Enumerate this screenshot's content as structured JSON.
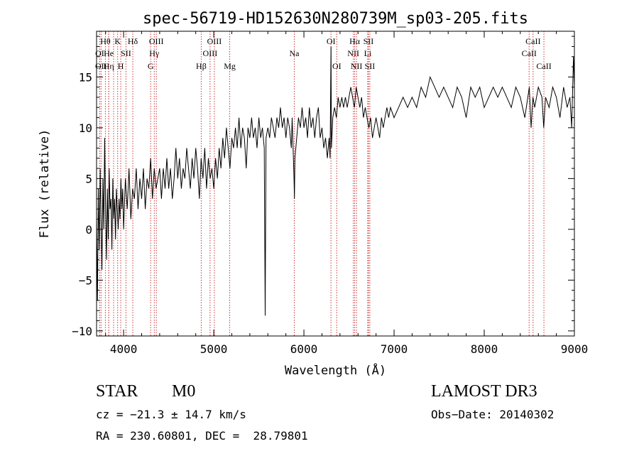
{
  "chart_data": {
    "type": "line",
    "title": "spec-56719-HD152630N280739M_sp03-205.fits",
    "xlabel": "Wavelength (Å)",
    "ylabel": "Flux (relative)",
    "xlim": [
      3700,
      9000
    ],
    "ylim": [
      -10.5,
      19.5
    ],
    "xticks": [
      4000,
      5000,
      6000,
      7000,
      8000,
      9000
    ],
    "yticks": [
      -10,
      -5,
      0,
      5,
      10,
      15
    ],
    "series": [
      {
        "name": "flux",
        "points": [
          [
            3700,
            1
          ],
          [
            3710,
            -7
          ],
          [
            3720,
            4
          ],
          [
            3730,
            -2
          ],
          [
            3740,
            6
          ],
          [
            3750,
            1
          ],
          [
            3760,
            -4
          ],
          [
            3770,
            5
          ],
          [
            3780,
            0
          ],
          [
            3790,
            9
          ],
          [
            3800,
            2
          ],
          [
            3810,
            -3
          ],
          [
            3820,
            4
          ],
          [
            3830,
            -1
          ],
          [
            3840,
            6
          ],
          [
            3850,
            2
          ],
          [
            3860,
            3
          ],
          [
            3870,
            -2
          ],
          [
            3880,
            5
          ],
          [
            3890,
            1
          ],
          [
            3900,
            3
          ],
          [
            3910,
            -1
          ],
          [
            3920,
            4
          ],
          [
            3930,
            2
          ],
          [
            3940,
            0
          ],
          [
            3950,
            3
          ],
          [
            3960,
            1
          ],
          [
            3970,
            5
          ],
          [
            3980,
            2
          ],
          [
            3990,
            4
          ],
          [
            4000,
            0
          ],
          [
            4020,
            5
          ],
          [
            4040,
            2
          ],
          [
            4060,
            6
          ],
          [
            4080,
            1
          ],
          [
            4100,
            4
          ],
          [
            4120,
            3
          ],
          [
            4140,
            6
          ],
          [
            4160,
            2
          ],
          [
            4180,
            5
          ],
          [
            4200,
            3
          ],
          [
            4220,
            6
          ],
          [
            4240,
            2
          ],
          [
            4260,
            5
          ],
          [
            4280,
            4
          ],
          [
            4300,
            7
          ],
          [
            4320,
            3
          ],
          [
            4340,
            6
          ],
          [
            4360,
            4
          ],
          [
            4380,
            5
          ],
          [
            4400,
            6
          ],
          [
            4420,
            3
          ],
          [
            4440,
            6
          ],
          [
            4460,
            4
          ],
          [
            4480,
            7
          ],
          [
            4500,
            4
          ],
          [
            4520,
            6
          ],
          [
            4540,
            3
          ],
          [
            4560,
            5
          ],
          [
            4580,
            8
          ],
          [
            4600,
            5
          ],
          [
            4620,
            7
          ],
          [
            4640,
            4
          ],
          [
            4660,
            6
          ],
          [
            4680,
            5
          ],
          [
            4700,
            8
          ],
          [
            4720,
            6
          ],
          [
            4740,
            4
          ],
          [
            4760,
            7
          ],
          [
            4780,
            5
          ],
          [
            4800,
            8
          ],
          [
            4820,
            6
          ],
          [
            4840,
            3
          ],
          [
            4860,
            7
          ],
          [
            4880,
            5
          ],
          [
            4900,
            8
          ],
          [
            4920,
            4
          ],
          [
            4940,
            7
          ],
          [
            4960,
            5
          ],
          [
            4980,
            6
          ],
          [
            5000,
            4
          ],
          [
            5020,
            7
          ],
          [
            5040,
            5
          ],
          [
            5060,
            8
          ],
          [
            5080,
            6
          ],
          [
            5100,
            9
          ],
          [
            5120,
            7
          ],
          [
            5140,
            10
          ],
          [
            5160,
            8
          ],
          [
            5180,
            6
          ],
          [
            5200,
            9
          ],
          [
            5220,
            8
          ],
          [
            5240,
            10
          ],
          [
            5260,
            8
          ],
          [
            5280,
            11
          ],
          [
            5300,
            8
          ],
          [
            5320,
            10
          ],
          [
            5340,
            9
          ],
          [
            5360,
            6
          ],
          [
            5380,
            10
          ],
          [
            5400,
            9
          ],
          [
            5420,
            11
          ],
          [
            5440,
            9
          ],
          [
            5460,
            10
          ],
          [
            5480,
            8
          ],
          [
            5500,
            11
          ],
          [
            5520,
            9
          ],
          [
            5540,
            10
          ],
          [
            5560,
            8
          ],
          [
            5570,
            -8.5
          ],
          [
            5580,
            9
          ],
          [
            5600,
            10
          ],
          [
            5620,
            9
          ],
          [
            5640,
            11
          ],
          [
            5660,
            10
          ],
          [
            5680,
            9
          ],
          [
            5700,
            11
          ],
          [
            5720,
            10
          ],
          [
            5740,
            12
          ],
          [
            5760,
            10
          ],
          [
            5780,
            11
          ],
          [
            5800,
            9
          ],
          [
            5820,
            11
          ],
          [
            5840,
            10
          ],
          [
            5860,
            8
          ],
          [
            5870,
            11
          ],
          [
            5890,
            5
          ],
          [
            5895,
            3
          ],
          [
            5900,
            7
          ],
          [
            5920,
            9
          ],
          [
            5940,
            11
          ],
          [
            5960,
            10
          ],
          [
            5980,
            12
          ],
          [
            6000,
            10
          ],
          [
            6020,
            11
          ],
          [
            6040,
            9
          ],
          [
            6060,
            12
          ],
          [
            6080,
            10
          ],
          [
            6100,
            11
          ],
          [
            6120,
            9
          ],
          [
            6140,
            11
          ],
          [
            6160,
            12
          ],
          [
            6180,
            9
          ],
          [
            6200,
            10
          ],
          [
            6220,
            8
          ],
          [
            6240,
            9
          ],
          [
            6260,
            7
          ],
          [
            6270,
            8
          ],
          [
            6280,
            9
          ],
          [
            6290,
            7
          ],
          [
            6300,
            18
          ],
          [
            6305,
            8
          ],
          [
            6320,
            11
          ],
          [
            6340,
            12
          ],
          [
            6360,
            11
          ],
          [
            6380,
            13
          ],
          [
            6400,
            12
          ],
          [
            6420,
            13
          ],
          [
            6440,
            12
          ],
          [
            6460,
            13
          ],
          [
            6480,
            12
          ],
          [
            6500,
            13
          ],
          [
            6520,
            14
          ],
          [
            6540,
            13
          ],
          [
            6560,
            12
          ],
          [
            6580,
            14
          ],
          [
            6600,
            13
          ],
          [
            6620,
            12
          ],
          [
            6640,
            13
          ],
          [
            6660,
            11
          ],
          [
            6680,
            12
          ],
          [
            6700,
            11
          ],
          [
            6720,
            10
          ],
          [
            6740,
            11
          ],
          [
            6760,
            9
          ],
          [
            6780,
            10
          ],
          [
            6800,
            11
          ],
          [
            6820,
            10
          ],
          [
            6840,
            9
          ],
          [
            6860,
            11
          ],
          [
            6880,
            10
          ],
          [
            6900,
            11
          ],
          [
            6920,
            12
          ],
          [
            6940,
            11
          ],
          [
            6960,
            12
          ],
          [
            7000,
            11
          ],
          [
            7050,
            12
          ],
          [
            7100,
            13
          ],
          [
            7150,
            12
          ],
          [
            7200,
            13
          ],
          [
            7250,
            12
          ],
          [
            7300,
            14
          ],
          [
            7350,
            13
          ],
          [
            7400,
            15
          ],
          [
            7450,
            14
          ],
          [
            7500,
            13
          ],
          [
            7550,
            14
          ],
          [
            7600,
            13
          ],
          [
            7650,
            12
          ],
          [
            7700,
            14
          ],
          [
            7750,
            13
          ],
          [
            7800,
            11
          ],
          [
            7850,
            14
          ],
          [
            7900,
            13
          ],
          [
            7950,
            14
          ],
          [
            8000,
            12
          ],
          [
            8050,
            13
          ],
          [
            8100,
            14
          ],
          [
            8150,
            13
          ],
          [
            8200,
            14
          ],
          [
            8250,
            13
          ],
          [
            8300,
            12
          ],
          [
            8350,
            14
          ],
          [
            8400,
            13
          ],
          [
            8450,
            11
          ],
          [
            8500,
            14
          ],
          [
            8520,
            10
          ],
          [
            8540,
            13
          ],
          [
            8560,
            12
          ],
          [
            8600,
            14
          ],
          [
            8640,
            13
          ],
          [
            8660,
            10
          ],
          [
            8680,
            13
          ],
          [
            8720,
            12
          ],
          [
            8760,
            14
          ],
          [
            8800,
            13
          ],
          [
            8840,
            11
          ],
          [
            8880,
            14
          ],
          [
            8920,
            12
          ],
          [
            8950,
            13
          ],
          [
            8970,
            10
          ],
          [
            8990,
            17
          ],
          [
            9000,
            14
          ]
        ]
      }
    ],
    "lines": [
      {
        "x": 3735,
        "label": "OI",
        "row": 1
      },
      {
        "x": 3750,
        "label": "OII",
        "row": 2
      },
      {
        "x": 3798,
        "label": "Hθ",
        "row": 0
      },
      {
        "x": 3835,
        "label": "Hη",
        "row": 2
      },
      {
        "x": 3835,
        "label": "He",
        "row": 1
      },
      {
        "x": 3889,
        "label": "",
        "row": 2
      },
      {
        "x": 3934,
        "label": "K",
        "row": 0
      },
      {
        "x": 3968,
        "label": "H",
        "row": 2
      },
      {
        "x": 4026,
        "label": "SII",
        "row": 1
      },
      {
        "x": 4102,
        "label": "Hδ",
        "row": 0
      },
      {
        "x": 4300,
        "label": "G",
        "row": 2
      },
      {
        "x": 4340,
        "label": "Hγ",
        "row": 1
      },
      {
        "x": 4363,
        "label": "OIII",
        "row": 0
      },
      {
        "x": 4861,
        "label": "Hβ",
        "row": 2
      },
      {
        "x": 4959,
        "label": "OIII",
        "row": 1
      },
      {
        "x": 5007,
        "label": "OIII",
        "row": 0
      },
      {
        "x": 5177,
        "label": "Mg",
        "row": 2
      },
      {
        "x": 5893,
        "label": "Na",
        "row": 1
      },
      {
        "x": 6300,
        "label": "OI",
        "row": 0
      },
      {
        "x": 6364,
        "label": "OI",
        "row": 2
      },
      {
        "x": 6548,
        "label": "NII",
        "row": 1
      },
      {
        "x": 6563,
        "label": "Hα",
        "row": 0
      },
      {
        "x": 6583,
        "label": "NII",
        "row": 2
      },
      {
        "x": 6708,
        "label": "Li",
        "row": 1
      },
      {
        "x": 6716,
        "label": "SII",
        "row": 0
      },
      {
        "x": 6731,
        "label": "SII",
        "row": 2
      },
      {
        "x": 8498,
        "label": "CaII",
        "row": 1
      },
      {
        "x": 8542,
        "label": "CaII",
        "row": 0
      },
      {
        "x": 8662,
        "label": "CaII",
        "row": 2
      }
    ]
  },
  "info": {
    "class": "STAR",
    "subclass": "M0",
    "survey": "LAMOST DR3",
    "cz": "cz = −21.3 ± 14.7 km/s",
    "coords": "RA = 230.60801, DEC =  28.79801",
    "obs_date": "Obs−Date: 20140302"
  },
  "colors": {
    "line_marker": "#cc3333",
    "spectrum": "#000000"
  }
}
